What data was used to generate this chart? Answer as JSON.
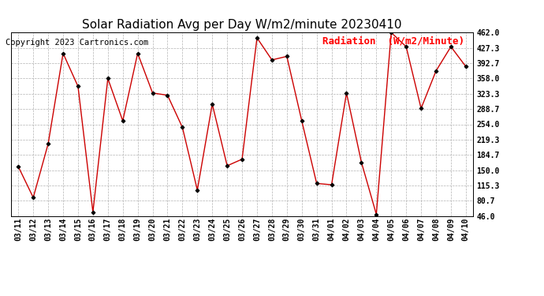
{
  "title": "Solar Radiation Avg per Day W/m2/minute 20230410",
  "copyright": "Copyright 2023 Cartronics.com",
  "legend_label": "Radiation  (W/m2/Minute)",
  "dates": [
    "03/11",
    "03/12",
    "03/13",
    "03/14",
    "03/15",
    "03/16",
    "03/17",
    "03/18",
    "03/19",
    "03/20",
    "03/21",
    "03/22",
    "03/23",
    "03/24",
    "03/25",
    "03/26",
    "03/27",
    "03/28",
    "03/29",
    "03/30",
    "03/31",
    "04/01",
    "04/02",
    "04/03",
    "04/04",
    "04/05",
    "04/06",
    "04/07",
    "04/08",
    "04/09",
    "04/10"
  ],
  "values": [
    158,
    88,
    210,
    415,
    340,
    55,
    358,
    262,
    415,
    325,
    320,
    247,
    105,
    300,
    160,
    175,
    450,
    400,
    408,
    262,
    120,
    117,
    325,
    168,
    50,
    462,
    430,
    290,
    375,
    430,
    385
  ],
  "line_color": "#cc0000",
  "marker_color": "#000000",
  "background_color": "#ffffff",
  "grid_color": "#aaaaaa",
  "title_fontsize": 11,
  "copyright_fontsize": 7.5,
  "legend_fontsize": 9,
  "tick_fontsize": 7,
  "yticks": [
    46.0,
    80.7,
    115.3,
    150.0,
    184.7,
    219.3,
    254.0,
    288.7,
    323.3,
    358.0,
    392.7,
    427.3,
    462.0
  ],
  "ymin": 46.0,
  "ymax": 462.0
}
